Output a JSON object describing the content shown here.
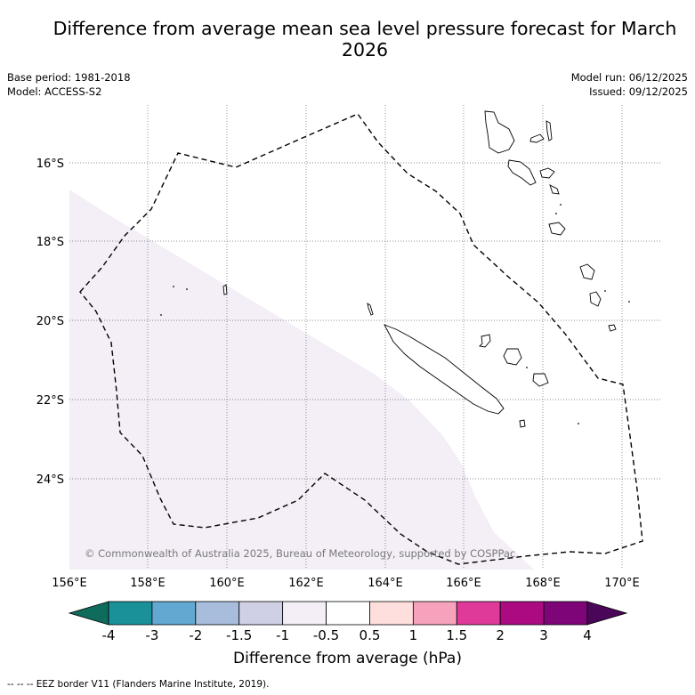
{
  "title": "Difference from average mean sea level pressure forecast for March 2026",
  "base_period": "Base period: 1981-2018",
  "model": "Model: ACCESS-S2",
  "model_run": "Model run: 06/12/2025",
  "issued": "Issued: 09/12/2025",
  "copyright": "© Commonwealth of Australia 2025, Bureau of Meteorology, supported by COSPPac",
  "lon_ticks": [
    "156°E",
    "158°E",
    "160°E",
    "162°E",
    "164°E",
    "166°E",
    "168°E",
    "170°E"
  ],
  "lat_ticks": [
    "16°S",
    "18°S",
    "20°S",
    "22°S",
    "24°S"
  ],
  "colorbar": {
    "title": "Difference from average (hPa)",
    "tick_labels": [
      "-4",
      "-3",
      "-2",
      "-1.5",
      "-1",
      "-0.5",
      "0.5",
      "1",
      "1.5",
      "2",
      "3",
      "4"
    ],
    "colors": [
      "#0f6b5c",
      "#1a9199",
      "#62a8d0",
      "#a8bcdb",
      "#cfd0e6",
      "#f4eef7",
      "#ffffff",
      "#ffdfdd",
      "#f7a2bc",
      "#df3a9a",
      "#ab0a80",
      "#7e0577",
      "#4a0658"
    ]
  },
  "legend_footer": "--  --  -- EEZ border V11 (Flanders Marine Institute, 2019)."
}
